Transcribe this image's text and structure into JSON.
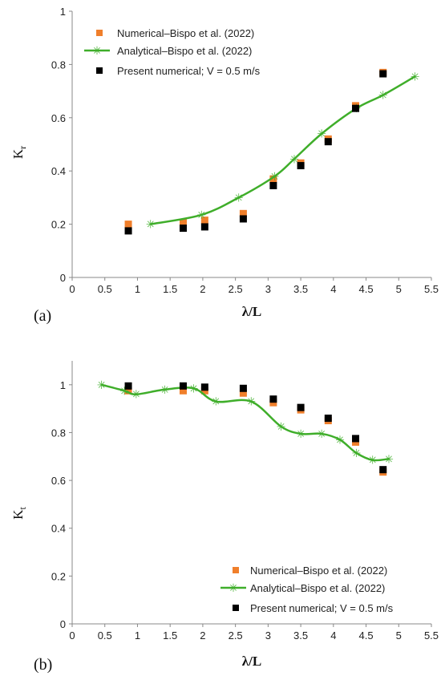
{
  "chart_data": [
    {
      "type": "scatter",
      "panel_label": "(a)",
      "xlabel": "λ/L",
      "ylabel": "K",
      "ylabel_sub": "r",
      "xlim": [
        0,
        5.5
      ],
      "ylim": [
        0,
        1
      ],
      "x_ticks": [
        "0",
        "0.5",
        "1",
        "1.5",
        "2",
        "2.5",
        "3",
        "3.5",
        "4",
        "4.5",
        "5",
        "5.5"
      ],
      "y_ticks": [
        "0",
        "0.2",
        "0.4",
        "0.6",
        "0.8",
        "1"
      ],
      "legend_position": "top-left",
      "colors": {
        "numerical": "#f07f2b",
        "analytical": "#3fae2a",
        "present": "#000000"
      },
      "series": [
        {
          "name": "Numerical–Bispo et al. (2022)",
          "kind": "square",
          "x": [
            0.86,
            1.7,
            2.03,
            2.62,
            3.08,
            3.5,
            3.92,
            4.34,
            4.76
          ],
          "y": [
            0.2,
            0.205,
            0.215,
            0.24,
            0.37,
            0.43,
            0.52,
            0.645,
            0.77
          ]
        },
        {
          "name": "Analytical–Bispo et al. (2022)",
          "kind": "line",
          "x": [
            1.2,
            1.98,
            2.55,
            3.1,
            3.4,
            3.82,
            4.35,
            4.76,
            5.25
          ],
          "y": [
            0.2,
            0.235,
            0.3,
            0.38,
            0.445,
            0.54,
            0.635,
            0.685,
            0.755
          ]
        },
        {
          "name": "Present numerical; V = 0.5 m/s",
          "kind": "square",
          "x": [
            0.86,
            1.7,
            2.03,
            2.62,
            3.08,
            3.5,
            3.92,
            4.34,
            4.76
          ],
          "y": [
            0.175,
            0.185,
            0.19,
            0.22,
            0.345,
            0.42,
            0.51,
            0.635,
            0.765
          ]
        }
      ]
    },
    {
      "type": "scatter",
      "panel_label": "(b)",
      "xlabel": "λ/L",
      "ylabel": "K",
      "ylabel_sub": "t",
      "xlim": [
        0,
        5.5
      ],
      "ylim": [
        0,
        1.1
      ],
      "x_ticks": [
        "0",
        "0.5",
        "1",
        "1.5",
        "2",
        "2.5",
        "3",
        "3.5",
        "4",
        "4.5",
        "5",
        "5.5"
      ],
      "y_ticks": [
        "0",
        "0.2",
        "0.4",
        "0.6",
        "0.8",
        "1"
      ],
      "legend_position": "bottom-right",
      "colors": {
        "numerical": "#f07f2b",
        "analytical": "#3fae2a",
        "present": "#000000"
      },
      "series": [
        {
          "name": "Numerical–Bispo et al. (2022)",
          "kind": "square",
          "x": [
            0.86,
            1.7,
            2.03,
            2.62,
            3.08,
            3.5,
            3.92,
            4.34,
            4.76
          ],
          "y": [
            0.975,
            0.975,
            0.975,
            0.965,
            0.925,
            0.895,
            0.85,
            0.76,
            0.635
          ]
        },
        {
          "name": "Analytical–Bispo et al. (2022)",
          "kind": "line",
          "x": [
            0.45,
            0.8,
            0.98,
            1.42,
            1.86,
            2.2,
            2.74,
            3.2,
            3.5,
            3.82,
            4.1,
            4.35,
            4.6,
            4.85
          ],
          "y": [
            1.0,
            0.975,
            0.96,
            0.98,
            0.985,
            0.93,
            0.93,
            0.825,
            0.795,
            0.795,
            0.77,
            0.715,
            0.685,
            0.69
          ]
        },
        {
          "name": "Present numerical; V = 0.5 m/s",
          "kind": "square",
          "x": [
            0.86,
            1.7,
            2.03,
            2.62,
            3.08,
            3.5,
            3.92,
            4.34,
            4.76
          ],
          "y": [
            0.995,
            0.995,
            0.99,
            0.985,
            0.94,
            0.905,
            0.86,
            0.775,
            0.645
          ]
        }
      ]
    }
  ]
}
